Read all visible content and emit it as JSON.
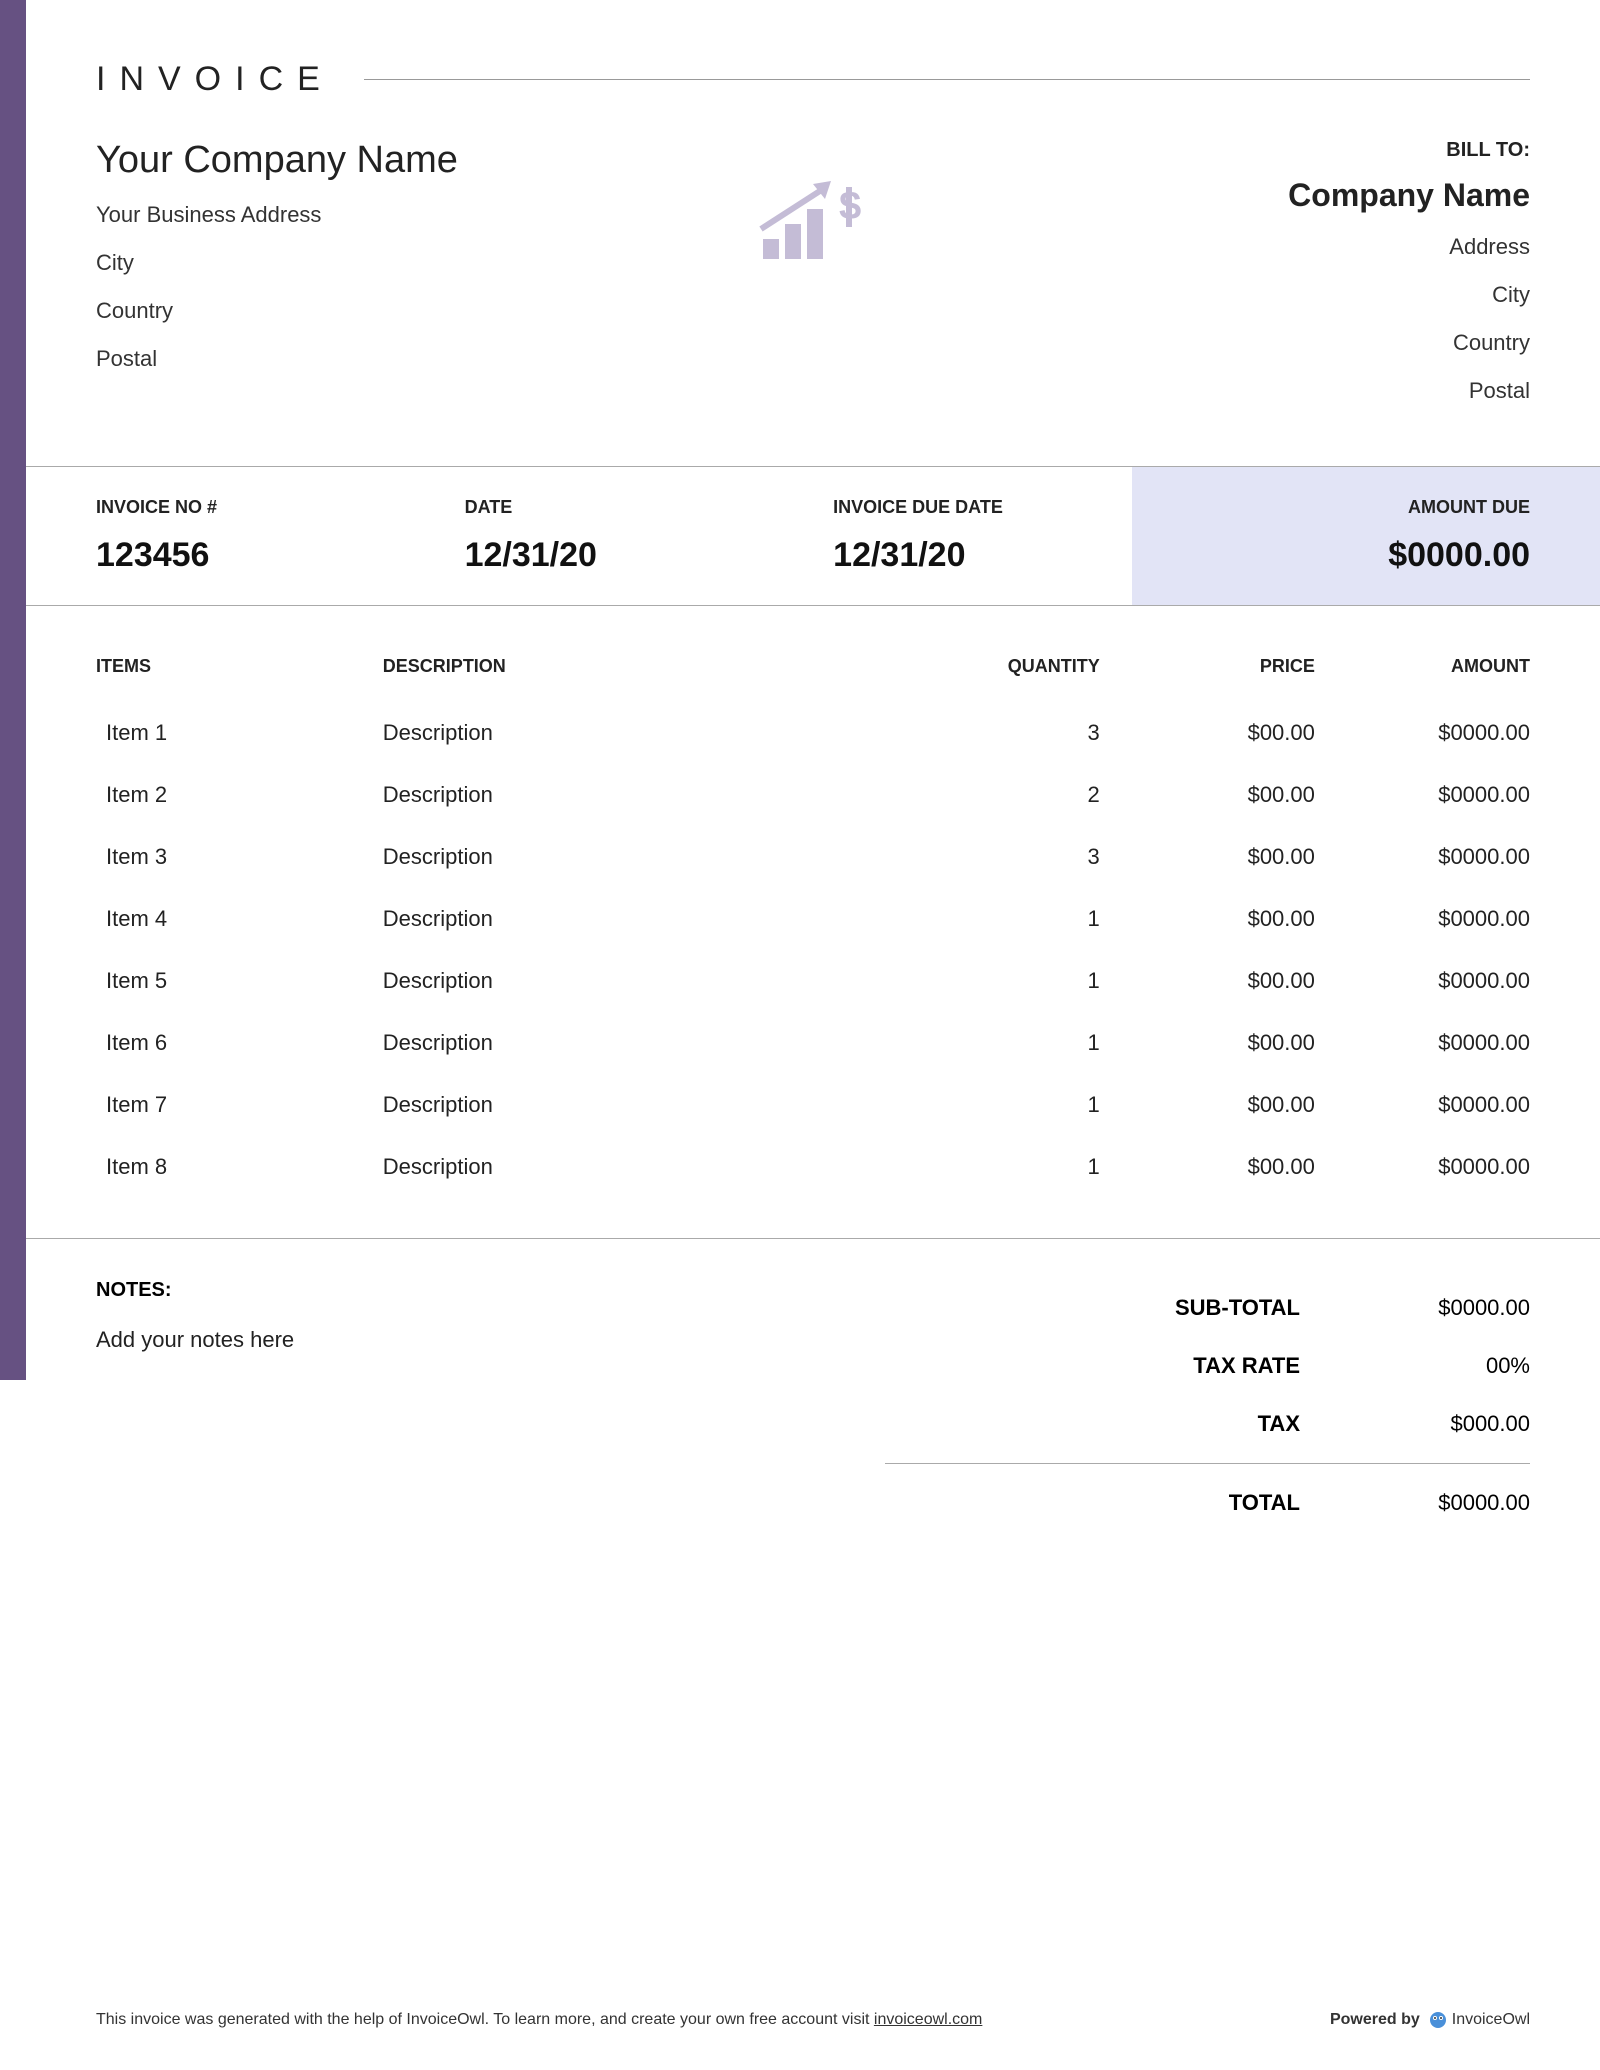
{
  "colors": {
    "accent": "#665182",
    "highlight_bg": "#e2e4f6",
    "icon": "#c4bcd6",
    "text": "#222222",
    "border": "#aaaaaa"
  },
  "title": "INVOICE",
  "seller": {
    "name": "Your Company Name",
    "address": "Your Business Address",
    "city": "City",
    "country": "Country",
    "postal": "Postal"
  },
  "buyer": {
    "bill_to_label": "BILL TO:",
    "name": "Company Name",
    "address": "Address",
    "city": "City",
    "country": "Country",
    "postal": "Postal"
  },
  "meta": {
    "invoice_no_label": "INVOICE NO #",
    "invoice_no": "123456",
    "date_label": "DATE",
    "date": "12/31/20",
    "due_date_label": "INVOICE DUE DATE",
    "due_date": "12/31/20",
    "amount_due_label": "AMOUNT DUE",
    "amount_due": "$0000.00"
  },
  "columns": {
    "items": "ITEMS",
    "description": "DESCRIPTION",
    "quantity": "QUANTITY",
    "price": "PRICE",
    "amount": "AMOUNT"
  },
  "items": [
    {
      "name": "Item 1",
      "description": "Description",
      "quantity": "3",
      "price": "$00.00",
      "amount": "$0000.00"
    },
    {
      "name": "Item 2",
      "description": "Description",
      "quantity": "2",
      "price": "$00.00",
      "amount": "$0000.00"
    },
    {
      "name": "Item 3",
      "description": "Description",
      "quantity": "3",
      "price": "$00.00",
      "amount": "$0000.00"
    },
    {
      "name": "Item 4",
      "description": "Description",
      "quantity": "1",
      "price": "$00.00",
      "amount": "$0000.00"
    },
    {
      "name": "Item 5",
      "description": "Description",
      "quantity": "1",
      "price": "$00.00",
      "amount": "$0000.00"
    },
    {
      "name": "Item 6",
      "description": "Description",
      "quantity": "1",
      "price": "$00.00",
      "amount": "$0000.00"
    },
    {
      "name": "Item 7",
      "description": "Description",
      "quantity": "1",
      "price": "$00.00",
      "amount": "$0000.00"
    },
    {
      "name": "Item 8",
      "description": "Description",
      "quantity": "1",
      "price": "$00.00",
      "amount": "$0000.00"
    }
  ],
  "notes": {
    "label": "NOTES:",
    "text": "Add your notes here"
  },
  "totals": {
    "subtotal_label": "SUB-TOTAL",
    "subtotal": "$0000.00",
    "tax_rate_label": "TAX RATE",
    "tax_rate": "00%",
    "tax_label": "TAX",
    "tax": "$000.00",
    "total_label": "TOTAL",
    "total": "$0000.00"
  },
  "footer": {
    "text_prefix": "This invoice was generated with the help of InvoiceOwl. To learn more, and create your own free account visit ",
    "link_text": "invoiceowl.com",
    "powered_by": "Powered by",
    "brand": "InvoiceOwl"
  }
}
